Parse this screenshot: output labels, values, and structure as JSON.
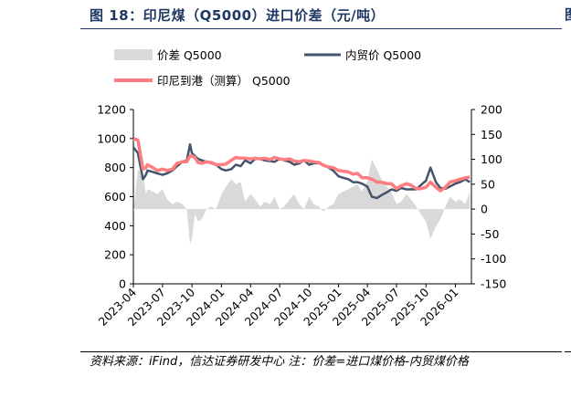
{
  "figure": {
    "title": "图 18：印尼煤（Q5000）进口价差（元/吨）",
    "source_note": "资料来源：iFind，信达证券研发中心 注：价差=进口煤价格-内贸煤价格"
  },
  "colors": {
    "title": "#1f3864",
    "spread_area": "#d9d9d9",
    "domestic_line": "#44546a",
    "port_line": "#ff7c80"
  },
  "chart_data": {
    "type": "line",
    "x_dates": [
      "2023-04-01",
      "2023-04-15",
      "2023-05-01",
      "2023-05-10",
      "2023-05-15",
      "2023-06-01",
      "2023-06-15",
      "2023-07-01",
      "2023-07-15",
      "2023-08-01",
      "2023-08-15",
      "2023-09-01",
      "2023-09-15",
      "2023-09-25",
      "2023-10-01",
      "2023-10-10",
      "2023-10-20",
      "2023-11-01",
      "2023-11-15",
      "2023-12-01",
      "2023-12-15",
      "2024-01-01",
      "2024-01-15",
      "2024-02-01",
      "2024-02-15",
      "2024-03-01",
      "2024-03-15",
      "2024-04-01",
      "2024-04-15",
      "2024-05-01",
      "2024-05-15",
      "2024-06-01",
      "2024-06-15",
      "2024-07-01",
      "2024-07-15",
      "2024-08-01",
      "2024-08-15",
      "2024-09-01",
      "2024-09-15",
      "2024-10-01",
      "2024-10-15",
      "2024-11-01",
      "2024-11-15",
      "2024-12-01",
      "2024-12-15",
      "2025-01-01",
      "2025-01-15",
      "2025-02-01",
      "2025-02-15",
      "2025-03-01",
      "2025-03-15",
      "2025-04-01",
      "2025-04-15",
      "2025-05-01",
      "2025-05-15",
      "2025-06-01",
      "2025-06-15",
      "2025-07-01",
      "2025-07-15",
      "2025-08-01",
      "2025-08-15",
      "2025-09-01",
      "2025-09-15",
      "2025-10-01",
      "2025-10-15",
      "2025-11-01",
      "2025-11-15",
      "2025-12-01",
      "2025-12-15",
      "2026-01-01",
      "2026-01-15",
      "2026-02-01",
      "2026-02-15"
    ],
    "x_tick_labels": [
      "2023-04",
      "2023-07",
      "2023-10",
      "2024-01",
      "2024-04",
      "2024-07",
      "2024-10",
      "2025-01",
      "2025-04",
      "2025-07",
      "2025-10",
      "2026-01"
    ],
    "x_tick_dates": [
      "2023-04-01",
      "2023-07-01",
      "2023-10-01",
      "2024-01-01",
      "2024-04-01",
      "2024-07-01",
      "2024-10-01",
      "2025-01-01",
      "2025-04-01",
      "2025-07-01",
      "2025-10-01",
      "2026-01-01"
    ],
    "left_axis": {
      "range": [
        0,
        1200
      ],
      "ticks": [
        0,
        200,
        400,
        600,
        800,
        1000,
        1200
      ]
    },
    "right_axis": {
      "range": [
        -150,
        200
      ],
      "ticks": [
        -150,
        -100,
        -50,
        0,
        50,
        100,
        150,
        200
      ]
    },
    "series": [
      {
        "name": "价差 Q5000",
        "type": "area",
        "axis": "right",
        "values": [
          -5,
          80,
          70,
          30,
          40,
          35,
          30,
          40,
          20,
          10,
          15,
          10,
          0,
          -70,
          -60,
          -10,
          -25,
          -20,
          0,
          5,
          0,
          30,
          45,
          60,
          50,
          55,
          15,
          30,
          20,
          5,
          15,
          10,
          25,
          0,
          5,
          20,
          30,
          10,
          0,
          25,
          10,
          5,
          -5,
          5,
          10,
          30,
          35,
          40,
          45,
          50,
          35,
          55,
          100,
          80,
          60,
          45,
          35,
          10,
          15,
          30,
          20,
          5,
          -10,
          -25,
          -60,
          -35,
          -20,
          5,
          25,
          15,
          20,
          10,
          35
        ]
      },
      {
        "name": "内贸价 Q5000",
        "type": "line",
        "axis": "left",
        "values": [
          940,
          900,
          720,
          750,
          780,
          770,
          760,
          750,
          760,
          780,
          810,
          840,
          850,
          960,
          900,
          880,
          860,
          850,
          840,
          830,
          820,
          790,
          780,
          790,
          820,
          810,
          850,
          830,
          860,
          860,
          850,
          845,
          840,
          860,
          850,
          840,
          820,
          830,
          850,
          820,
          830,
          830,
          820,
          800,
          780,
          740,
          730,
          720,
          700,
          700,
          690,
          670,
          600,
          590,
          610,
          630,
          650,
          640,
          660,
          650,
          650,
          650,
          680,
          710,
          800,
          700,
          660,
          655,
          670,
          690,
          700,
          720,
          700
        ]
      },
      {
        "name": "印尼到港（测算） Q5000",
        "type": "line",
        "axis": "left",
        "values": [
          1000,
          990,
          790,
          800,
          820,
          800,
          780,
          790,
          780,
          790,
          830,
          840,
          840,
          880,
          880,
          870,
          835,
          830,
          840,
          835,
          820,
          820,
          825,
          850,
          870,
          865,
          865,
          860,
          865,
          860,
          865,
          855,
          870,
          860,
          855,
          860,
          845,
          840,
          850,
          845,
          840,
          835,
          815,
          805,
          800,
          780,
          775,
          770,
          755,
          760,
          730,
          730,
          720,
          700,
          700,
          690,
          690,
          655,
          675,
          690,
          680,
          655,
          655,
          665,
          700,
          665,
          640,
          665,
          700,
          710,
          720,
          730,
          735
        ]
      }
    ]
  }
}
